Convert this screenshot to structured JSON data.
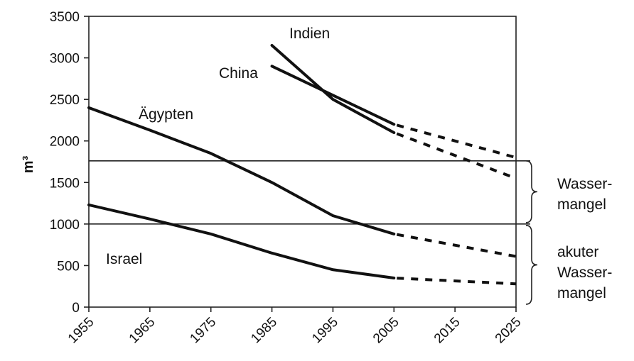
{
  "chart_data": {
    "type": "line",
    "ylabel": "m³",
    "xlim": [
      1955,
      2025
    ],
    "ylim": [
      0,
      3500
    ],
    "x_ticks": [
      "1955",
      "1965",
      "1975",
      "1985",
      "1995",
      "2005",
      "2015",
      "2025"
    ],
    "y_ticks": [
      "0",
      "500",
      "1000",
      "1500",
      "2000",
      "2500",
      "3000",
      "3500"
    ],
    "grid": false,
    "series": [
      {
        "name": "Indien",
        "solid": [
          [
            1985,
            3150
          ],
          [
            1995,
            2500
          ],
          [
            2005,
            2100
          ]
        ],
        "projected": [
          [
            2005,
            2100
          ],
          [
            2025,
            1550
          ]
        ]
      },
      {
        "name": "China",
        "solid": [
          [
            1985,
            2900
          ],
          [
            1995,
            2550
          ],
          [
            2005,
            2200
          ]
        ],
        "projected": [
          [
            2005,
            2200
          ],
          [
            2025,
            1800
          ]
        ]
      },
      {
        "name": "Ägypten",
        "solid": [
          [
            1955,
            2400
          ],
          [
            1965,
            2130
          ],
          [
            1975,
            1850
          ],
          [
            1985,
            1500
          ],
          [
            1995,
            1100
          ],
          [
            2005,
            880
          ]
        ],
        "projected": [
          [
            2005,
            880
          ],
          [
            2025,
            610
          ]
        ]
      },
      {
        "name": "Israel",
        "solid": [
          [
            1955,
            1230
          ],
          [
            1965,
            1060
          ],
          [
            1975,
            880
          ],
          [
            1985,
            650
          ],
          [
            1995,
            450
          ],
          [
            2005,
            350
          ]
        ],
        "projected": [
          [
            2005,
            350
          ],
          [
            2025,
            280
          ]
        ]
      }
    ],
    "thresholds": [
      1760,
      1000
    ],
    "annotations": {
      "water_shortage": {
        "lines": [
          "Wasser-",
          "mangel"
        ],
        "range": [
          1000,
          1760
        ]
      },
      "acute_water_shortage": {
        "lines": [
          "akuter",
          "Wasser-",
          "mangel"
        ],
        "range": [
          0,
          1000
        ]
      }
    }
  }
}
